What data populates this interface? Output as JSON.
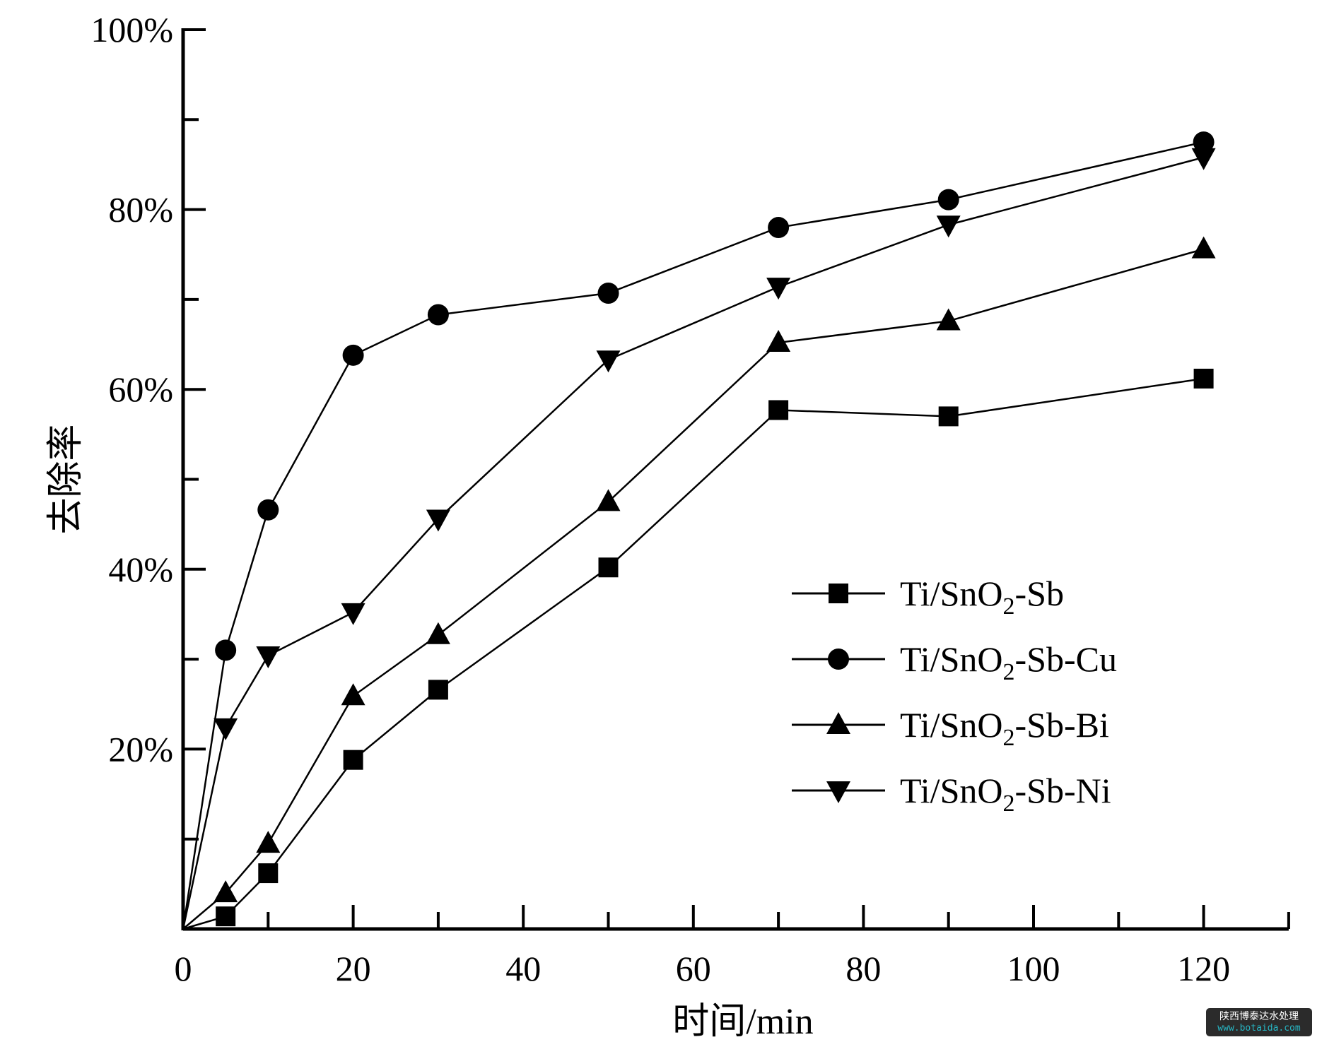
{
  "chart_data": {
    "type": "line",
    "title": "",
    "xlabel": "时间/min",
    "ylabel": "去除率",
    "xlim": [
      0,
      130
    ],
    "ylim": [
      0,
      100
    ],
    "x_ticks": [
      0,
      20,
      40,
      60,
      80,
      100,
      120
    ],
    "x_tick_labels": [
      "0",
      "20",
      "40",
      "60",
      "80",
      "100",
      "120"
    ],
    "y_ticks": [
      20,
      40,
      60,
      80,
      100
    ],
    "y_tick_labels": [
      "20%",
      "40%",
      "60%",
      "80%",
      "100%"
    ],
    "grid": false,
    "legend_position": "center-right",
    "x": [
      0,
      5,
      10,
      20,
      30,
      50,
      70,
      90,
      120
    ],
    "series": [
      {
        "name": "Ti/SnO2-Sb",
        "name_parts": [
          "Ti/SnO",
          "2",
          "-Sb"
        ],
        "marker": "square",
        "values": [
          0,
          1.4,
          6.2,
          18.8,
          26.6,
          40.2,
          57.7,
          57.0,
          61.2
        ]
      },
      {
        "name": "Ti/SnO2-Sb-Cu",
        "name_parts": [
          "Ti/SnO",
          "2",
          "-Sb-Cu"
        ],
        "marker": "circle",
        "values": [
          0,
          31.0,
          46.6,
          63.8,
          68.3,
          70.7,
          78.0,
          81.1,
          87.5
        ]
      },
      {
        "name": "Ti/SnO2-Sb-Bi",
        "name_parts": [
          "Ti/SnO",
          "2",
          "-Sb-Bi"
        ],
        "marker": "triangle-up",
        "values": [
          0,
          4.0,
          9.5,
          25.9,
          32.7,
          47.5,
          65.2,
          67.6,
          75.6
        ]
      },
      {
        "name": "Ti/SnO2-Sb-Ni",
        "name_parts": [
          "Ti/SnO",
          "2",
          "-Sb-Ni"
        ],
        "marker": "triangle-down",
        "values": [
          0,
          22.4,
          30.4,
          35.2,
          45.6,
          63.3,
          71.4,
          78.3,
          85.8
        ]
      }
    ],
    "color": "#000000"
  },
  "watermark": {
    "line1": "陕西博泰达水处理",
    "line2": "www.botaida.com"
  }
}
